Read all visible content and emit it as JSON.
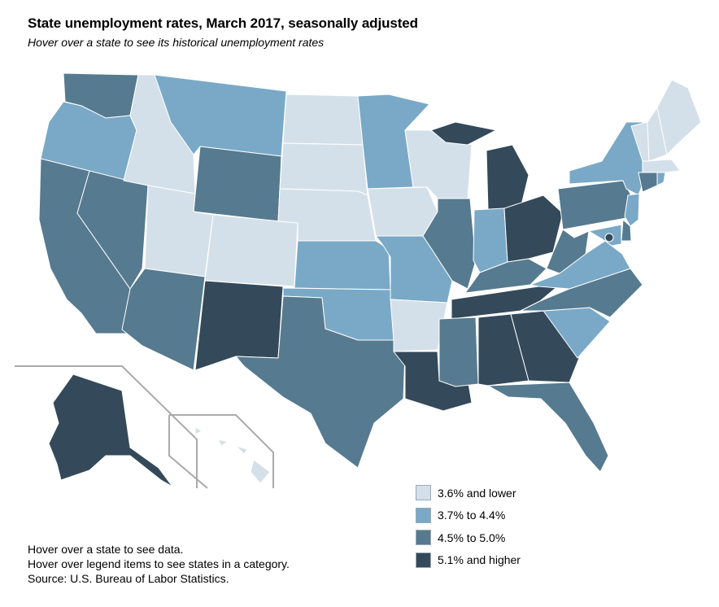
{
  "header": {
    "title": "State unemployment rates, March 2017, seasonally adjusted",
    "subtitle": "Hover over a state to see its historical unemployment rates"
  },
  "legend": {
    "items": [
      {
        "key": "c1",
        "label": "3.6% and lower",
        "color": "#d4e0e9"
      },
      {
        "key": "c2",
        "label": "3.7% to 4.4%",
        "color": "#79a9c7"
      },
      {
        "key": "c3",
        "label": "4.5% to 5.0%",
        "color": "#567a8f"
      },
      {
        "key": "c4",
        "label": "5.1% and higher",
        "color": "#34495a"
      }
    ]
  },
  "notes": {
    "line1": "Hover over a state to see data.",
    "line2": "Hover over legend items to see states in a category.",
    "line3": "Source: U.S. Bureau of Labor Statistics."
  },
  "state_categories": {
    "WA": "c3",
    "OR": "c2",
    "CA": "c3",
    "NV": "c3",
    "ID": "c1",
    "MT": "c2",
    "WY": "c3",
    "UT": "c1",
    "AZ": "c3",
    "CO": "c1",
    "NM": "c4",
    "ND": "c1",
    "SD": "c1",
    "NE": "c1",
    "KS": "c2",
    "OK": "c2",
    "TX": "c3",
    "MN": "c2",
    "IA": "c1",
    "MO": "c2",
    "AR": "c1",
    "LA": "c4",
    "WI": "c1",
    "IL": "c3",
    "MI": "c4",
    "IN": "c2",
    "OH": "c4",
    "KY": "c3",
    "TN": "c4",
    "MS": "c3",
    "AL": "c4",
    "GA": "c4",
    "FL": "c3",
    "SC": "c2",
    "NC": "c3",
    "VA": "c2",
    "WV": "c3",
    "PA": "c3",
    "NY": "c2",
    "VT": "c1",
    "NH": "c1",
    "ME": "c1",
    "MA": "c1",
    "CT": "c3",
    "RI": "c2",
    "NJ": "c2",
    "DE": "c3",
    "MD": "c2",
    "DC": "c4",
    "AK": "c4",
    "HI": "c1"
  }
}
